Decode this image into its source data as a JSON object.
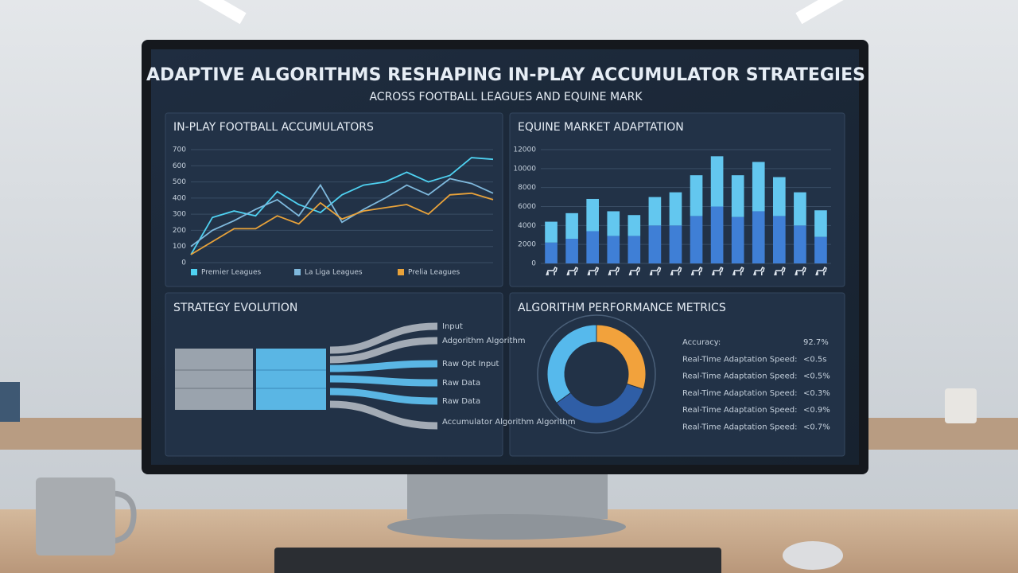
{
  "title": "ADAPTIVE ALGORITHMS RESHAPING IN-PLAY ACCUMULATOR STRATEGIES",
  "subtitle": "ACROSS FOOTBALL LEAGUES AND EQUINE MARK",
  "chart_data": [
    {
      "type": "line",
      "title": "IN-PLAY FOOTBALL ACCUMULATORS",
      "categories": [
        null,
        null,
        null,
        null,
        null,
        null,
        null,
        null,
        null,
        null,
        null,
        null,
        null,
        null,
        null
      ],
      "series": [
        {
          "name": "Premier Leagues",
          "color": "#4fd2f2",
          "values": [
            50,
            280,
            320,
            290,
            440,
            360,
            310,
            420,
            480,
            500,
            560,
            500,
            540,
            650,
            640
          ]
        },
        {
          "name": "La Liga Leagues",
          "color": "#7fb9dd",
          "values": [
            100,
            200,
            260,
            330,
            390,
            290,
            480,
            250,
            330,
            400,
            480,
            420,
            520,
            490,
            430
          ]
        },
        {
          "name": "Prelia Leagues",
          "color": "#e8a23a",
          "values": [
            50,
            130,
            210,
            210,
            290,
            240,
            370,
            270,
            320,
            340,
            360,
            300,
            420,
            430,
            390
          ]
        }
      ],
      "ylim": [
        0,
        700
      ],
      "yticks": [
        0,
        100,
        200,
        300,
        400,
        500,
        600,
        700
      ],
      "grid": true
    },
    {
      "type": "bar",
      "title": "EQUINE MARKET ADAPTATION",
      "stacked": true,
      "categories": [
        null,
        null,
        null,
        null,
        null,
        null,
        null,
        null,
        null,
        null,
        null,
        null,
        null,
        null
      ],
      "series": [
        {
          "color": "#3f7fd6",
          "values": [
            2200,
            2600,
            3400,
            2900,
            2900,
            4000,
            4000,
            5000,
            6000,
            4900,
            5500,
            5000,
            4000,
            2800
          ]
        },
        {
          "color": "#63c7ef",
          "values": [
            2200,
            2700,
            3400,
            2600,
            2200,
            3000,
            3500,
            4300,
            5300,
            4400,
            5200,
            4100,
            3500,
            2800
          ]
        }
      ],
      "ylim": [
        0,
        12000
      ],
      "yticks": [
        0,
        2000,
        4000,
        6000,
        8000,
        10000,
        12000
      ],
      "grid": true
    },
    {
      "type": "pie",
      "title": "ALGORITHM PERFORMANCE METRICS",
      "values": [
        30,
        35,
        35
      ],
      "colors": [
        "#f2a23c",
        "#2f5ea6",
        "#56b9ec"
      ],
      "donut": true
    }
  ],
  "strategy_evolution": {
    "title": "STRATEGY EVOLUTION",
    "labels": [
      "Input",
      "Adgorithm Algorithm",
      "Raw Opt Input",
      "Raw Data",
      "Raw Data",
      "Accumulator Algorithm Algorithm"
    ]
  },
  "metrics": [
    [
      "Accuracy:",
      "92.7%"
    ],
    [
      "Real-Time Adaptation Speed:",
      "<0.5s"
    ],
    [
      "Real-Time Adaptation Speed:",
      "<0.5%"
    ],
    [
      "Real-Time Adaptation Speed:",
      "<0.3%"
    ],
    [
      "Real-Time Adaptation Speed:",
      "<0.9%"
    ],
    [
      "Real-Time Adaptation Speed:",
      "<0.7%"
    ]
  ]
}
